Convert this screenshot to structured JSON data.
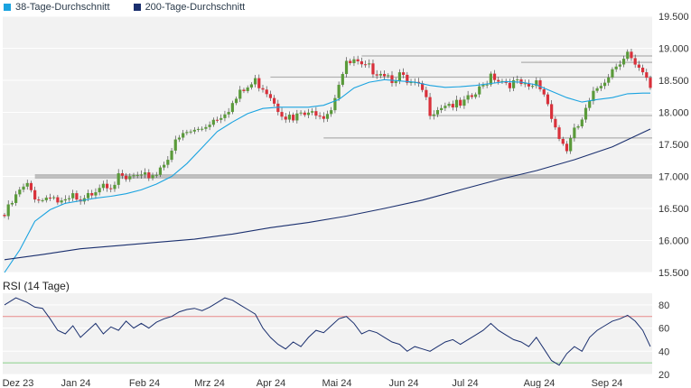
{
  "legend": {
    "sma38_label": "38-Tage-Durchschnitt",
    "sma200_label": "200-Tage-Durchschnitt"
  },
  "colors": {
    "sma38": "#1aa3e0",
    "sma200": "#1a2f6e",
    "candle_up": "#5a9a3a",
    "candle_down": "#d9303a",
    "rsi_line": "#1a2f6e",
    "rsi_upper": "#e88a8a",
    "rsi_lower": "#8ad08a",
    "panel_bg": "#f2f2f2",
    "level_line": "#a8a8a8"
  },
  "rsi_title": "RSI (14 Tage)",
  "chart_data": [
    {
      "type": "candlestick",
      "title": "",
      "x_labels": [
        "Dez 23",
        "Jan 24",
        "Feb 24",
        "Mrz 24",
        "Apr 24",
        "Mai 24",
        "Jun 24",
        "Jul 24",
        "Aug 24",
        "Sep 24"
      ],
      "y_ticks": [
        "15.500",
        "16.000",
        "16.500",
        "17.000",
        "17.500",
        "18.000",
        "18.500",
        "19.000",
        "19.500"
      ],
      "ylim": [
        15500,
        19500
      ],
      "grid": true,
      "close_path": [
        [
          0,
          16400
        ],
        [
          2,
          16600
        ],
        [
          4,
          16780
        ],
        [
          6,
          16860
        ],
        [
          8,
          16720
        ],
        [
          10,
          16650
        ],
        [
          12,
          16760
        ],
        [
          14,
          16630
        ],
        [
          16,
          16580
        ],
        [
          18,
          16700
        ],
        [
          20,
          16560
        ],
        [
          22,
          16700
        ],
        [
          24,
          16850
        ],
        [
          26,
          16950
        ],
        [
          28,
          16900
        ],
        [
          30,
          16980
        ],
        [
          32,
          16950
        ],
        [
          34,
          17020
        ],
        [
          36,
          16960
        ],
        [
          38,
          17040
        ],
        [
          40,
          17080
        ],
        [
          42,
          17250
        ],
        [
          44,
          17450
        ],
        [
          46,
          17600
        ],
        [
          48,
          17700
        ],
        [
          50,
          17720
        ],
        [
          52,
          17780
        ],
        [
          54,
          17880
        ],
        [
          56,
          17950
        ],
        [
          58,
          18050
        ],
        [
          60,
          18150
        ],
        [
          62,
          18300
        ],
        [
          64,
          18400
        ],
        [
          66,
          18500
        ],
        [
          68,
          18430
        ],
        [
          70,
          18300
        ],
        [
          72,
          18100
        ],
        [
          74,
          17980
        ],
        [
          76,
          17880
        ],
        [
          78,
          18000
        ],
        [
          80,
          17950
        ],
        [
          82,
          18050
        ],
        [
          84,
          18000
        ],
        [
          86,
          18100
        ],
        [
          88,
          18500
        ],
        [
          90,
          18750
        ],
        [
          92,
          18800
        ],
        [
          94,
          18700
        ],
        [
          96,
          18700
        ],
        [
          98,
          18680
        ],
        [
          100,
          18650
        ],
        [
          102,
          18560
        ],
        [
          104,
          18600
        ],
        [
          106,
          18450
        ],
        [
          108,
          18430
        ],
        [
          110,
          18350
        ],
        [
          112,
          18050
        ],
        [
          114,
          18100
        ],
        [
          116,
          18170
        ],
        [
          118,
          18150
        ],
        [
          120,
          18100
        ],
        [
          122,
          18200
        ],
        [
          124,
          18300
        ],
        [
          126,
          18420
        ],
        [
          128,
          18630
        ],
        [
          130,
          18550
        ],
        [
          132,
          18500
        ],
        [
          134,
          18470
        ],
        [
          136,
          18450
        ],
        [
          138,
          18350
        ],
        [
          140,
          18480
        ],
        [
          142,
          18320
        ],
        [
          144,
          18000
        ],
        [
          146,
          17620
        ],
        [
          148,
          17450
        ],
        [
          150,
          17700
        ],
        [
          152,
          17900
        ],
        [
          154,
          18150
        ],
        [
          156,
          18400
        ],
        [
          158,
          18550
        ],
        [
          160,
          18700
        ],
        [
          162,
          18850
        ],
        [
          164,
          18950
        ],
        [
          166,
          18700
        ],
        [
          168,
          18600
        ],
        [
          170,
          18400
        ]
      ],
      "series": [
        {
          "name": "38-Tage-Durchschnitt",
          "points": [
            [
              0,
              15500
            ],
            [
              4,
              15850
            ],
            [
              8,
              16300
            ],
            [
              12,
              16480
            ],
            [
              16,
              16580
            ],
            [
              20,
              16620
            ],
            [
              24,
              16660
            ],
            [
              28,
              16690
            ],
            [
              32,
              16730
            ],
            [
              36,
              16790
            ],
            [
              40,
              16880
            ],
            [
              44,
              17000
            ],
            [
              48,
              17200
            ],
            [
              52,
              17450
            ],
            [
              56,
              17700
            ],
            [
              60,
              17850
            ],
            [
              64,
              17980
            ],
            [
              68,
              18060
            ],
            [
              72,
              18080
            ],
            [
              76,
              18080
            ],
            [
              80,
              18080
            ],
            [
              84,
              18110
            ],
            [
              88,
              18200
            ],
            [
              92,
              18380
            ],
            [
              96,
              18470
            ],
            [
              100,
              18510
            ],
            [
              104,
              18490
            ],
            [
              108,
              18470
            ],
            [
              112,
              18420
            ],
            [
              116,
              18390
            ],
            [
              120,
              18400
            ],
            [
              124,
              18420
            ],
            [
              128,
              18450
            ],
            [
              132,
              18480
            ],
            [
              136,
              18470
            ],
            [
              140,
              18430
            ],
            [
              144,
              18330
            ],
            [
              148,
              18230
            ],
            [
              152,
              18160
            ],
            [
              156,
              18200
            ],
            [
              160,
              18230
            ],
            [
              164,
              18290
            ],
            [
              168,
              18300
            ],
            [
              170,
              18300
            ]
          ]
        },
        {
          "name": "200-Tage-Durchschnitt",
          "points": [
            [
              0,
              15700
            ],
            [
              10,
              15780
            ],
            [
              20,
              15870
            ],
            [
              30,
              15920
            ],
            [
              40,
              15970
            ],
            [
              50,
              16020
            ],
            [
              60,
              16100
            ],
            [
              70,
              16200
            ],
            [
              80,
              16280
            ],
            [
              90,
              16380
            ],
            [
              100,
              16500
            ],
            [
              110,
              16630
            ],
            [
              120,
              16790
            ],
            [
              130,
              16950
            ],
            [
              140,
              17090
            ],
            [
              150,
              17260
            ],
            [
              160,
              17460
            ],
            [
              170,
              17740
            ]
          ]
        }
      ],
      "support_levels": [
        {
          "y": 17000,
          "x_start": 8
        },
        {
          "y": 17600,
          "x_start": 84
        },
        {
          "y": 17950,
          "x_start": 112
        },
        {
          "y": 18550,
          "x_start": 70
        },
        {
          "y": 18780,
          "x_start": 136
        },
        {
          "y": 18880,
          "x_start": 94
        }
      ]
    },
    {
      "type": "line",
      "title": "RSI (14 Tage)",
      "y_ticks": [
        "20",
        "40",
        "60",
        "80"
      ],
      "ylim": [
        20,
        90
      ],
      "reference_lines": [
        70,
        30
      ],
      "x_labels": [
        "Dez 23",
        "Jan 24",
        "Feb 24",
        "Mrz 24",
        "Apr 24",
        "Mai 24",
        "Jun 24",
        "Jul 24",
        "Aug 24",
        "Sep 24"
      ],
      "series": [
        {
          "name": "",
          "points": [
            [
              0,
              80
            ],
            [
              3,
              86
            ],
            [
              6,
              82
            ],
            [
              8,
              78
            ],
            [
              10,
              77
            ],
            [
              12,
              68
            ],
            [
              14,
              58
            ],
            [
              16,
              55
            ],
            [
              18,
              62
            ],
            [
              20,
              52
            ],
            [
              22,
              58
            ],
            [
              24,
              64
            ],
            [
              26,
              55
            ],
            [
              28,
              61
            ],
            [
              30,
              58
            ],
            [
              32,
              66
            ],
            [
              34,
              60
            ],
            [
              36,
              64
            ],
            [
              38,
              60
            ],
            [
              40,
              65
            ],
            [
              42,
              68
            ],
            [
              44,
              70
            ],
            [
              46,
              74
            ],
            [
              48,
              76
            ],
            [
              50,
              77
            ],
            [
              52,
              75
            ],
            [
              54,
              78
            ],
            [
              56,
              82
            ],
            [
              58,
              86
            ],
            [
              60,
              84
            ],
            [
              62,
              80
            ],
            [
              64,
              76
            ],
            [
              66,
              72
            ],
            [
              68,
              60
            ],
            [
              70,
              52
            ],
            [
              72,
              46
            ],
            [
              74,
              42
            ],
            [
              76,
              48
            ],
            [
              78,
              44
            ],
            [
              80,
              52
            ],
            [
              82,
              58
            ],
            [
              84,
              56
            ],
            [
              86,
              62
            ],
            [
              88,
              68
            ],
            [
              90,
              70
            ],
            [
              92,
              64
            ],
            [
              94,
              55
            ],
            [
              96,
              58
            ],
            [
              98,
              56
            ],
            [
              100,
              52
            ],
            [
              102,
              48
            ],
            [
              104,
              46
            ],
            [
              106,
              40
            ],
            [
              108,
              44
            ],
            [
              110,
              42
            ],
            [
              112,
              40
            ],
            [
              114,
              44
            ],
            [
              116,
              48
            ],
            [
              118,
              50
            ],
            [
              120,
              46
            ],
            [
              122,
              50
            ],
            [
              124,
              54
            ],
            [
              126,
              58
            ],
            [
              128,
              64
            ],
            [
              130,
              58
            ],
            [
              132,
              54
            ],
            [
              134,
              50
            ],
            [
              136,
              48
            ],
            [
              138,
              44
            ],
            [
              140,
              52
            ],
            [
              142,
              42
            ],
            [
              144,
              32
            ],
            [
              146,
              28
            ],
            [
              148,
              38
            ],
            [
              150,
              44
            ],
            [
              152,
              40
            ],
            [
              154,
              52
            ],
            [
              156,
              58
            ],
            [
              158,
              62
            ],
            [
              160,
              66
            ],
            [
              162,
              68
            ],
            [
              164,
              71
            ],
            [
              166,
              66
            ],
            [
              168,
              58
            ],
            [
              170,
              44
            ]
          ]
        }
      ]
    }
  ]
}
